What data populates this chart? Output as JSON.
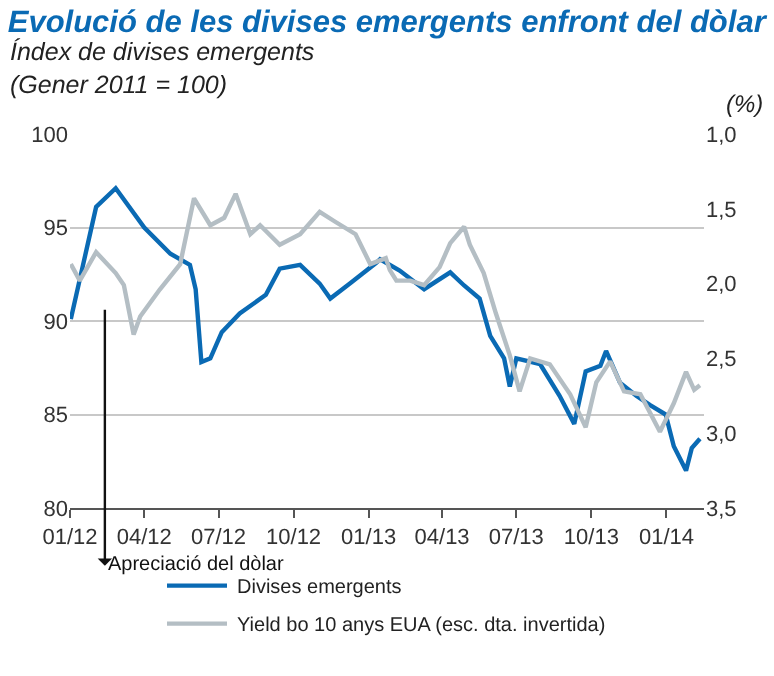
{
  "chart_data": {
    "type": "line",
    "title": "Evolució de les divises emergents enfront del dòlar",
    "subtitle": "Índex de divises emergents\n(Gener 2011 = 100)",
    "y2label": "(%)",
    "annotations": [
      "Apreciació del dòlar"
    ],
    "xlim": [
      "2012-01-01",
      "2014-02-16"
    ],
    "xticks": [
      {
        "value": "2012-01-01",
        "label": "01/12"
      },
      {
        "value": "2012-04-01",
        "label": "04/12"
      },
      {
        "value": "2012-07-01",
        "label": "07/12"
      },
      {
        "value": "2012-10-01",
        "label": "10/12"
      },
      {
        "value": "2013-01-01",
        "label": "01/13"
      },
      {
        "value": "2013-04-01",
        "label": "04/13"
      },
      {
        "value": "2013-07-01",
        "label": "07/13"
      },
      {
        "value": "2013-10-01",
        "label": "10/13"
      },
      {
        "value": "2014-01-01",
        "label": "01/14"
      }
    ],
    "ylim": [
      80,
      100
    ],
    "yticks": [
      80,
      85,
      90,
      95,
      100
    ],
    "y2lim": [
      3.5,
      1.0
    ],
    "y2ticks": [
      {
        "value": 1.0,
        "label": "1,0"
      },
      {
        "value": 1.5,
        "label": "1,5"
      },
      {
        "value": 2.0,
        "label": "2,0"
      },
      {
        "value": 2.5,
        "label": "2,5"
      },
      {
        "value": 3.0,
        "label": "3,0"
      },
      {
        "value": 3.5,
        "label": "3,5"
      }
    ],
    "grid": "y",
    "legend": "bottom",
    "marker": "none",
    "line_style": "solid",
    "series": [
      {
        "name": "Divises emergents",
        "color": "#0a6ab4",
        "x": [
          "2012-01-02",
          "2012-02-02",
          "2012-02-26",
          "2012-04-01",
          "2012-05-03",
          "2012-05-27",
          "2012-06-03",
          "2012-06-10",
          "2012-06-21",
          "2012-07-05",
          "2012-07-27",
          "2012-08-28",
          "2012-09-14",
          "2012-10-09",
          "2012-11-02",
          "2012-11-15",
          "2012-12-09",
          "2013-01-10",
          "2013-01-15",
          "2013-02-08",
          "2013-03-10",
          "2013-04-11",
          "2013-04-28",
          "2013-05-17",
          "2013-05-30",
          "2013-06-16",
          "2013-06-23",
          "2013-07-01",
          "2013-07-30",
          "2013-08-23",
          "2013-09-10",
          "2013-09-24",
          "2013-10-12",
          "2013-10-19",
          "2013-11-05",
          "2013-11-25",
          "2013-12-12",
          "2013-12-31",
          "2014-01-10",
          "2014-01-25",
          "2014-02-01",
          "2014-02-11"
        ],
        "values": [
          90.1,
          96.1,
          97.1,
          95.0,
          93.6,
          93.0,
          91.7,
          87.8,
          88.0,
          89.4,
          90.4,
          91.4,
          92.8,
          93.0,
          92.0,
          91.2,
          92.0,
          93.1,
          93.3,
          92.7,
          91.7,
          92.6,
          91.9,
          91.2,
          89.2,
          88.0,
          86.5,
          88.0,
          87.7,
          86.0,
          84.5,
          87.3,
          87.6,
          88.4,
          86.7,
          86.0,
          85.5,
          85.0,
          83.3,
          82.0,
          83.2,
          83.7
        ]
      },
      {
        "name": "$^{}$Yield bo 10 anys EUA (esc. dta. invertida)",
        "color": "#b4bec4",
        "axis": "y2",
        "x": [
          "2012-01-02",
          "2012-01-13",
          "2012-02-02",
          "2012-02-26",
          "2012-03-07",
          "2012-03-19",
          "2012-03-27",
          "2012-04-20",
          "2012-05-15",
          "2012-06-01",
          "2012-06-21",
          "2012-07-08",
          "2012-07-22",
          "2012-08-09",
          "2012-08-21",
          "2012-09-14",
          "2012-10-09",
          "2012-11-02",
          "2012-11-22",
          "2012-12-16",
          "2013-01-03",
          "2013-01-22",
          "2013-01-27",
          "2013-02-04",
          "2013-02-21",
          "2013-03-10",
          "2013-03-29",
          "2013-04-11",
          "2013-04-28",
          "2013-05-05",
          "2013-05-22",
          "2013-06-06",
          "2013-06-23",
          "2013-07-05",
          "2013-07-18",
          "2013-08-11",
          "2013-09-05",
          "2013-09-24",
          "2013-10-07",
          "2013-10-24",
          "2013-11-10",
          "2013-11-30",
          "2013-12-24",
          "2014-01-10",
          "2014-01-25",
          "2014-02-04",
          "2014-02-11"
        ],
        "values": [
          1.87,
          1.98,
          1.79,
          1.93,
          2.01,
          2.34,
          2.22,
          2.04,
          1.87,
          1.43,
          1.61,
          1.56,
          1.4,
          1.67,
          1.61,
          1.74,
          1.67,
          1.52,
          1.59,
          1.67,
          1.87,
          1.83,
          1.91,
          1.98,
          1.98,
          2.01,
          1.89,
          1.73,
          1.62,
          1.74,
          1.93,
          2.2,
          2.48,
          2.72,
          2.5,
          2.54,
          2.74,
          2.96,
          2.66,
          2.52,
          2.72,
          2.74,
          2.99,
          2.8,
          2.59,
          2.71,
          2.68
        ]
      }
    ]
  }
}
